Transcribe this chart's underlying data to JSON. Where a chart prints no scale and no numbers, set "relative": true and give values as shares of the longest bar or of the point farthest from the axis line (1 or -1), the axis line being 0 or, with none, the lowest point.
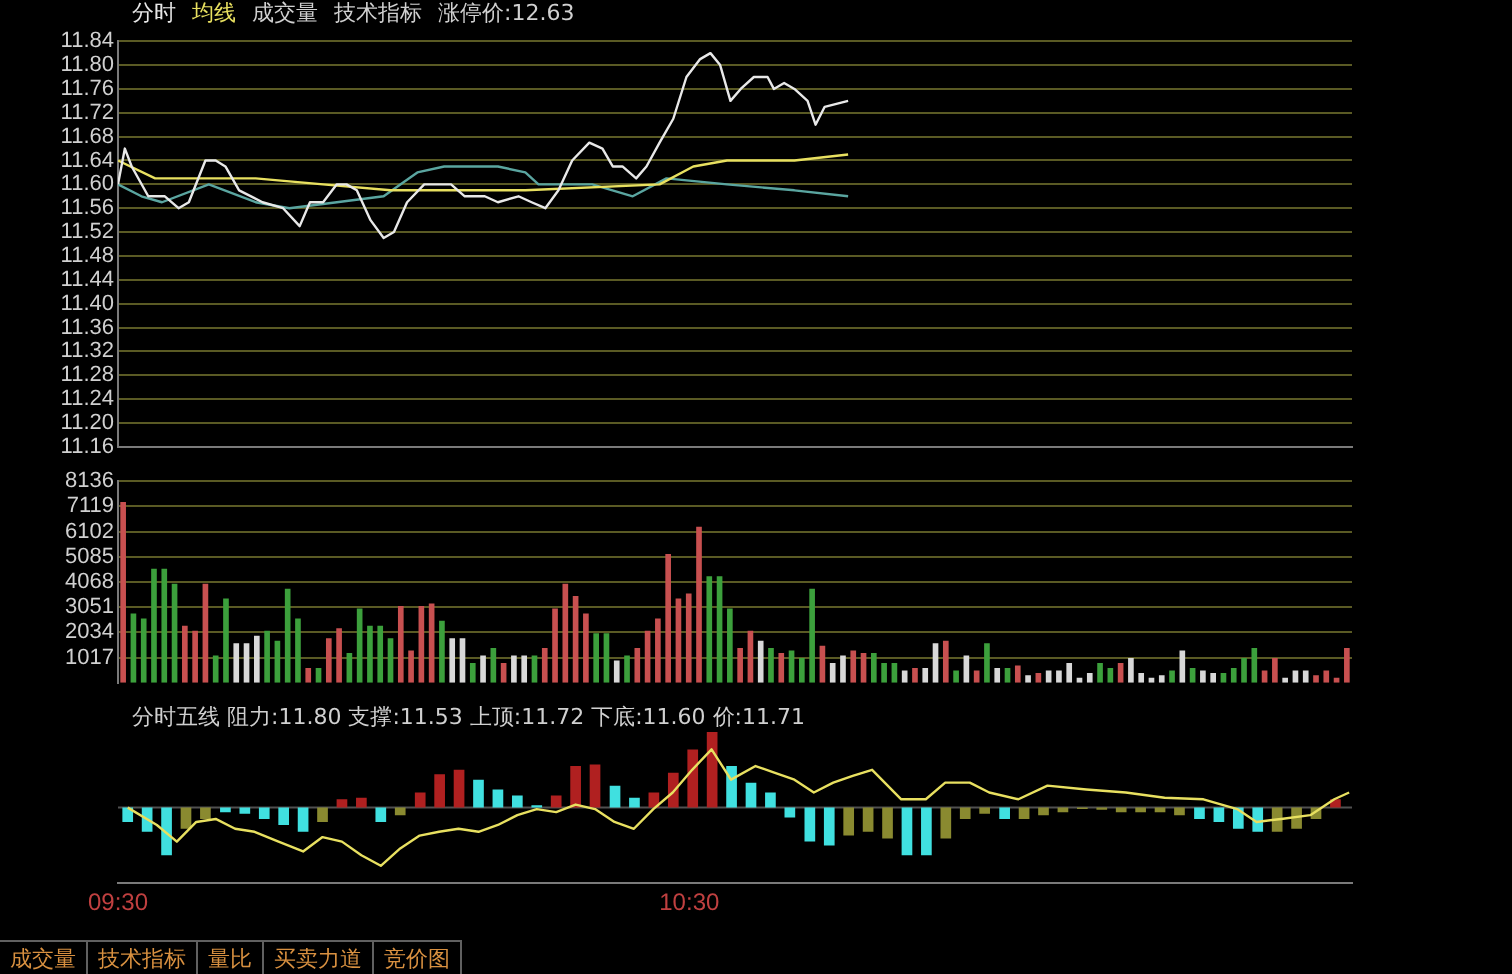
{
  "chart_data": [
    {
      "type": "line",
      "legend": "top left",
      "grid": "y",
      "tick_labels": "y",
      "annotations": [
        "成交量",
        "技术指标",
        "涨停价:12.63"
      ],
      "xlim": [
        9.5,
        11.66
      ],
      "ylim": [
        11.16,
        11.84
      ],
      "yticks": [
        11.16,
        {
          "value": 11.2,
          "label": "11.20"
        },
        11.24,
        11.28,
        11.32,
        11.36,
        {
          "value": 11.4,
          "label": "11.40"
        },
        11.44,
        11.48,
        11.52,
        11.56,
        {
          "value": 11.6,
          "label": "11.60"
        },
        11.64,
        11.68,
        11.72,
        11.76,
        {
          "value": 11.8,
          "label": "11.80"
        },
        11.84
      ],
      "series": [
        {
          "name": "分时",
          "color": "#e8e8e8",
          "x": [
            9.5,
            9.512,
            9.524,
            9.553,
            9.582,
            9.606,
            9.624,
            9.653,
            9.671,
            9.688,
            9.712,
            9.753,
            9.789,
            9.818,
            9.836,
            9.859,
            9.883,
            9.9,
            9.918,
            9.942,
            9.965,
            9.983,
            10.006,
            10.036,
            10.059,
            10.083,
            10.107,
            10.142,
            10.165,
            10.201,
            10.224,
            10.248,
            10.271,
            10.295,
            10.325,
            10.348,
            10.366,
            10.383,
            10.407,
            10.425,
            10.448,
            10.472,
            10.495,
            10.519,
            10.537,
            10.554,
            10.572,
            10.59,
            10.613,
            10.637,
            10.648,
            10.666,
            10.684,
            10.707,
            10.721,
            10.737,
            10.778
          ],
          "values": [
            11.6,
            11.66,
            11.63,
            11.58,
            11.58,
            11.56,
            11.57,
            11.64,
            11.64,
            11.63,
            11.59,
            11.57,
            11.56,
            11.53,
            11.57,
            11.57,
            11.6,
            11.6,
            11.59,
            11.54,
            11.51,
            11.52,
            11.57,
            11.6,
            11.6,
            11.6,
            11.58,
            11.58,
            11.57,
            11.58,
            11.57,
            11.56,
            11.59,
            11.64,
            11.67,
            11.66,
            11.63,
            11.63,
            11.61,
            11.63,
            11.67,
            11.71,
            11.78,
            11.81,
            11.82,
            11.8,
            11.74,
            11.76,
            11.78,
            11.78,
            11.76,
            11.77,
            11.76,
            11.74,
            11.7,
            11.73,
            11.74
          ]
        },
        {
          "name": "均线",
          "color": "#e8e060",
          "x": [
            9.5,
            9.565,
            9.624,
            9.741,
            9.859,
            9.977,
            10.213,
            10.448,
            10.507,
            10.566,
            10.684,
            10.778
          ],
          "values": [
            11.64,
            11.61,
            11.61,
            11.61,
            11.6,
            11.59,
            11.59,
            11.6,
            11.63,
            11.64,
            11.64,
            11.65
          ]
        },
        {
          "color": "#5aa5a0",
          "x": [
            9.5,
            9.541,
            9.577,
            9.659,
            9.741,
            9.8,
            9.883,
            9.965,
            10.024,
            10.071,
            10.165,
            10.213,
            10.236,
            10.33,
            10.401,
            10.46,
            10.566,
            10.684,
            10.778
          ],
          "values": [
            11.6,
            11.58,
            11.57,
            11.6,
            11.57,
            11.56,
            11.57,
            11.58,
            11.62,
            11.63,
            11.63,
            11.62,
            11.6,
            11.6,
            11.58,
            11.61,
            11.6,
            11.59,
            11.58
          ]
        }
      ]
    },
    {
      "type": "bar",
      "grid": "y",
      "tick_labels": "y",
      "categories": [
        null,
        null,
        null,
        null,
        null,
        null,
        null,
        null,
        null,
        null,
        null,
        null,
        null,
        null,
        null,
        null,
        null,
        null,
        null,
        null,
        null,
        null,
        null,
        null,
        null,
        null,
        null,
        null,
        null,
        null,
        null,
        null,
        null,
        null,
        null,
        null,
        null,
        null,
        null,
        null,
        null,
        null,
        null,
        null,
        null,
        null,
        null,
        null,
        null,
        null,
        null,
        null,
        null,
        null,
        null,
        null,
        null,
        null,
        null,
        null,
        null,
        null,
        null,
        null,
        null,
        null,
        null,
        null,
        null,
        null,
        null,
        null,
        null,
        null,
        null,
        null,
        null,
        null,
        null,
        null,
        null,
        null,
        null,
        null,
        null,
        null,
        null,
        null,
        null,
        null,
        null,
        null,
        null,
        null,
        null,
        null,
        null,
        null,
        null,
        null,
        null,
        null,
        null,
        null,
        null,
        null,
        null,
        null,
        null,
        null,
        null,
        null,
        null,
        null,
        null,
        null,
        null,
        null,
        null,
        null
      ],
      "ylim": [
        0,
        8136
      ],
      "yticks": [
        1017,
        2034,
        3051,
        4068,
        5085,
        6102,
        7119,
        8136
      ],
      "series": [
        {
          "values": [
            7300,
            2800,
            2600,
            4600,
            4600,
            4000,
            2300,
            2100,
            4000,
            1100,
            3400,
            1600,
            1600,
            1900,
            2100,
            1700,
            3800,
            2600,
            600,
            600,
            1800,
            2200,
            1200,
            3000,
            2300,
            2300,
            1800,
            3100,
            1300,
            3100,
            3200,
            2500,
            1800,
            1800,
            800,
            1100,
            1400,
            800,
            1100,
            1100,
            1100,
            1400,
            3000,
            4000,
            3500,
            2800,
            2000,
            2000,
            900,
            1100,
            1400,
            2100,
            2600,
            5200,
            3400,
            3600,
            6300,
            4300,
            4300,
            3000,
            1400,
            2100,
            1700,
            1400,
            1200,
            1300,
            1000,
            3800,
            1500,
            800,
            1100,
            1300,
            1200,
            1200,
            800,
            800,
            500,
            600,
            600,
            1600,
            1700,
            500,
            1100,
            500,
            1600,
            600,
            600,
            700,
            300,
            400,
            500,
            500,
            800,
            200,
            400,
            800,
            600,
            800,
            1000,
            400,
            200,
            300,
            500,
            1300,
            600,
            500,
            400,
            400,
            600,
            1000,
            1400,
            500,
            1000,
            200,
            500,
            500,
            300,
            500,
            200,
            1400
          ],
          "colors": [
            "#c85050",
            "#3ca03c",
            "#3ca03c",
            "#3ca03c",
            "#3ca03c",
            "#3ca03c",
            "#c85050",
            "#c85050",
            "#c85050",
            "#3ca03c",
            "#3ca03c",
            "#d8d8d8",
            "#d8d8d8",
            "#d8d8d8",
            "#3ca03c",
            "#3ca03c",
            "#3ca03c",
            "#3ca03c",
            "#c85050",
            "#3ca03c",
            "#c85050",
            "#c85050",
            "#3ca03c",
            "#3ca03c",
            "#3ca03c",
            "#3ca03c",
            "#3ca03c",
            "#c85050",
            "#c85050",
            "#c85050",
            "#c85050",
            "#3ca03c",
            "#d8d8d8",
            "#d8d8d8",
            "#3ca03c",
            "#d8d8d8",
            "#3ca03c",
            "#c85050",
            "#d8d8d8",
            "#d8d8d8",
            "#3ca03c",
            "#c85050",
            "#c85050",
            "#c85050",
            "#c85050",
            "#c85050",
            "#3ca03c",
            "#3ca03c",
            "#d8d8d8",
            "#3ca03c",
            "#c85050",
            "#c85050",
            "#c85050",
            "#c85050",
            "#c85050",
            "#c85050",
            "#c85050",
            "#3ca03c",
            "#3ca03c",
            "#3ca03c",
            "#c85050",
            "#c85050",
            "#d8d8d8",
            "#3ca03c",
            "#c85050",
            "#3ca03c",
            "#3ca03c",
            "#3ca03c",
            "#c85050",
            "#d8d8d8",
            "#d8d8d8",
            "#c85050",
            "#c85050",
            "#3ca03c",
            "#3ca03c",
            "#3ca03c",
            "#d8d8d8",
            "#c85050",
            "#d8d8d8",
            "#d8d8d8",
            "#c85050",
            "#3ca03c",
            "#d8d8d8",
            "#c85050",
            "#3ca03c",
            "#d8d8d8",
            "#3ca03c",
            "#c85050",
            "#d8d8d8",
            "#c85050",
            "#d8d8d8",
            "#d8d8d8",
            "#d8d8d8",
            "#d8d8d8",
            "#d8d8d8",
            "#3ca03c",
            "#3ca03c",
            "#c85050",
            "#d8d8d8",
            "#d8d8d8",
            "#d8d8d8",
            "#d8d8d8",
            "#3ca03c",
            "#d8d8d8",
            "#3ca03c",
            "#d8d8d8",
            "#d8d8d8",
            "#3ca03c",
            "#3ca03c",
            "#3ca03c",
            "#3ca03c",
            "#c85050",
            "#c85050",
            "#d8d8d8",
            "#d8d8d8",
            "#d8d8d8",
            "#c85050",
            "#c85050",
            "#c85050",
            "#c85050"
          ]
        }
      ]
    },
    {
      "type": "bar",
      "relative": true,
      "title": "分时五线  阻力:11.80  支撑:11.53  上顶:11.72  下底:11.60  价:11.71",
      "annotations": [
        "成交量",
        "技术指标",
        "量比",
        "买卖力道",
        "竞价图"
      ],
      "xlim": [
        9.5,
        11.66
      ],
      "xticks": [
        {
          "value": 9.5,
          "label": "09:30"
        },
        {
          "value": 10.5,
          "label": "10:30"
        }
      ],
      "series": [
        {
          "x": [
            9.517,
            9.551,
            9.585,
            9.619,
            9.653,
            9.688,
            9.722,
            9.756,
            9.79,
            9.824,
            9.858,
            9.892,
            9.926,
            9.96,
            9.994,
            10.029,
            10.063,
            10.097,
            10.131,
            10.165,
            10.199,
            10.233,
            10.267,
            10.301,
            10.335,
            10.37,
            10.404,
            10.438,
            10.472,
            10.506,
            10.54,
            10.574,
            10.608,
            10.642,
            10.676,
            10.711,
            10.745,
            10.779,
            10.813,
            10.847,
            10.881,
            10.915,
            10.949,
            10.983,
            11.017,
            11.052,
            11.086,
            11.12,
            11.154,
            11.188,
            11.222,
            11.256,
            11.29,
            11.324,
            11.358,
            11.393,
            11.427,
            11.461,
            11.495,
            11.529,
            11.563,
            11.597,
            11.631
          ],
          "values": [
            -0.19,
            -0.32,
            -0.63,
            -0.28,
            -0.15,
            -0.06,
            -0.08,
            -0.15,
            -0.23,
            -0.32,
            -0.19,
            0.11,
            0.13,
            -0.19,
            -0.1,
            0.2,
            0.44,
            0.5,
            0.37,
            0.24,
            0.16,
            0.03,
            0.16,
            0.55,
            0.57,
            0.29,
            0.13,
            0.2,
            0.46,
            0.77,
            1,
            0.55,
            0.33,
            0.2,
            -0.13,
            -0.45,
            -0.5,
            -0.37,
            -0.32,
            -0.41,
            -0.63,
            -0.63,
            -0.41,
            -0.15,
            -0.08,
            -0.15,
            -0.15,
            -0.1,
            -0.06,
            -0.02,
            -0.03,
            -0.06,
            -0.06,
            -0.06,
            -0.1,
            -0.15,
            -0.19,
            -0.28,
            -0.32,
            -0.32,
            -0.28,
            -0.15,
            0.11
          ],
          "colors": [
            "#40e0e0",
            "#40e0e0",
            "#40e0e0",
            "#8a8a30",
            "#8a8a30",
            "#40e0e0",
            "#40e0e0",
            "#40e0e0",
            "#40e0e0",
            "#40e0e0",
            "#8a8a30",
            "#b02020",
            "#b02020",
            "#40e0e0",
            "#8a8a30",
            "#b02020",
            "#b02020",
            "#b02020",
            "#40e0e0",
            "#40e0e0",
            "#40e0e0",
            "#40e0e0",
            "#b02020",
            "#b02020",
            "#b02020",
            "#40e0e0",
            "#40e0e0",
            "#b02020",
            "#b02020",
            "#b02020",
            "#b02020",
            "#40e0e0",
            "#40e0e0",
            "#40e0e0",
            "#40e0e0",
            "#40e0e0",
            "#40e0e0",
            "#8a8a30",
            "#8a8a30",
            "#8a8a30",
            "#40e0e0",
            "#40e0e0",
            "#8a8a30",
            "#8a8a30",
            "#8a8a30",
            "#40e0e0",
            "#8a8a30",
            "#8a8a30",
            "#8a8a30",
            "#8a8a30",
            "#8a8a30",
            "#8a8a30",
            "#8a8a30",
            "#8a8a30",
            "#8a8a30",
            "#40e0e0",
            "#40e0e0",
            "#40e0e0",
            "#40e0e0",
            "#8a8a30",
            "#8a8a30",
            "#8a8a30",
            "#b02020"
          ]
        },
        {
          "type": "line",
          "color": "#e8e060",
          "x": [
            9.517,
            9.568,
            9.603,
            9.637,
            9.671,
            9.705,
            9.739,
            9.781,
            9.824,
            9.858,
            9.892,
            9.926,
            9.96,
            9.994,
            10.028,
            10.062,
            10.096,
            10.131,
            10.165,
            10.199,
            10.233,
            10.267,
            10.301,
            10.335,
            10.369,
            10.403,
            10.437,
            10.471,
            10.505,
            10.539,
            10.573,
            10.616,
            10.65,
            10.684,
            10.718,
            10.752,
            10.786,
            10.82,
            10.871,
            10.914,
            10.948,
            10.991,
            11.025,
            11.076,
            11.127,
            11.195,
            11.264,
            11.332,
            11.4,
            11.459,
            11.493,
            11.536,
            11.587,
            11.629,
            11.655
          ],
          "values": [
            0,
            -0.23,
            -0.45,
            -0.19,
            -0.15,
            -0.28,
            -0.32,
            -0.45,
            -0.58,
            -0.39,
            -0.45,
            -0.63,
            -0.77,
            -0.54,
            -0.37,
            -0.32,
            -0.28,
            -0.32,
            -0.23,
            -0.1,
            -0.02,
            -0.06,
            0.04,
            -0.02,
            -0.19,
            -0.28,
            -0.02,
            0.2,
            0.5,
            0.77,
            0.37,
            0.55,
            0.46,
            0.37,
            0.2,
            0.33,
            0.42,
            0.5,
            0.11,
            0.11,
            0.33,
            0.33,
            0.2,
            0.11,
            0.29,
            0.24,
            0.2,
            0.13,
            0.11,
            -0.02,
            -0.19,
            -0.15,
            -0.1,
            0.11,
            0.2
          ]
        }
      ]
    }
  ]
}
